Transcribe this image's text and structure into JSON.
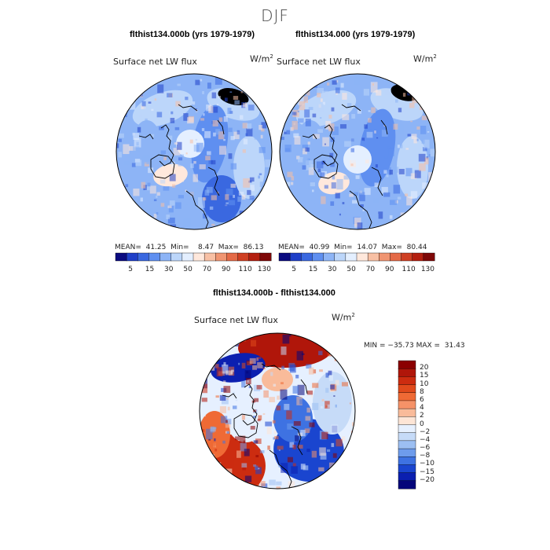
{
  "figure": {
    "title": "DJF"
  },
  "panels": [
    {
      "title": "flthist134.000b (yrs 1979-1979)",
      "variable": "Surface net LW flux",
      "units_base": "W/m",
      "units_exp": "2",
      "stats": "MEAN=  41.25  Min=    8.47  Max=  86.13",
      "colorbar_ticks": [
        "5",
        "15",
        "30",
        "50",
        "70",
        "90",
        "110",
        "130"
      ]
    },
    {
      "title": "flthist134.000 (yrs 1979-1979)",
      "variable": "Surface net LW flux",
      "units_base": "W/m",
      "units_exp": "2",
      "stats": "MEAN=  40.99  Min=  14.07  Max=  80.44",
      "colorbar_ticks": [
        "5",
        "15",
        "30",
        "50",
        "70",
        "90",
        "110",
        "130"
      ]
    }
  ],
  "diff_panel": {
    "title": "flthist134.000b - flthist134.000",
    "variable": "Surface net LW flux",
    "units_base": "W/m",
    "units_exp": "2",
    "stats": "MIN = −35.73 MAX =  31.43",
    "colorbar_ticks": [
      "20",
      "15",
      "10",
      "8",
      "6",
      "4",
      "2",
      "0",
      "−2",
      "−4",
      "−6",
      "−8",
      "−10",
      "−15",
      "−20"
    ]
  },
  "colors": {
    "abs_scale": [
      "#0b0b80",
      "#1f3fc8",
      "#3a68e0",
      "#5f8ff0",
      "#8db4f6",
      "#bcd6fa",
      "#e4efff",
      "#ffe8dc",
      "#f8c0a4",
      "#f09572",
      "#e46a47",
      "#cf4023",
      "#b41f10",
      "#7e0808"
    ],
    "diff_scale": [
      "#8b0000",
      "#b0160a",
      "#cc2c10",
      "#e04a1c",
      "#ef6a35",
      "#f59268",
      "#f9bb9a",
      "#fde5d6",
      "#e6f0ff",
      "#c6dbf8",
      "#9cbff2",
      "#6e9cec",
      "#3e72e2",
      "#1a45cf",
      "#0b1fb0",
      "#04067a"
    ]
  },
  "chart_data": [
    {
      "type": "map",
      "title": "flthist134.000b (yrs 1979-1979)",
      "variable": "Surface net LW flux",
      "units": "W/m2",
      "season": "DJF",
      "mean": 41.25,
      "min": 8.47,
      "max": 86.13,
      "colorbar_levels": [
        5,
        15,
        30,
        50,
        70,
        90,
        110,
        130
      ]
    },
    {
      "type": "map",
      "title": "flthist134.000 (yrs 1979-1979)",
      "variable": "Surface net LW flux",
      "units": "W/m2",
      "season": "DJF",
      "mean": 40.99,
      "min": 14.07,
      "max": 80.44,
      "colorbar_levels": [
        5,
        15,
        30,
        50,
        70,
        90,
        110,
        130
      ]
    },
    {
      "type": "map",
      "title": "flthist134.000b - flthist134.000",
      "variable": "Surface net LW flux",
      "units": "W/m2",
      "season": "DJF",
      "min": -35.73,
      "max": 31.43,
      "colorbar_levels": [
        -20,
        -15,
        -10,
        -8,
        -6,
        -4,
        -2,
        0,
        2,
        4,
        6,
        8,
        10,
        15,
        20
      ]
    }
  ]
}
